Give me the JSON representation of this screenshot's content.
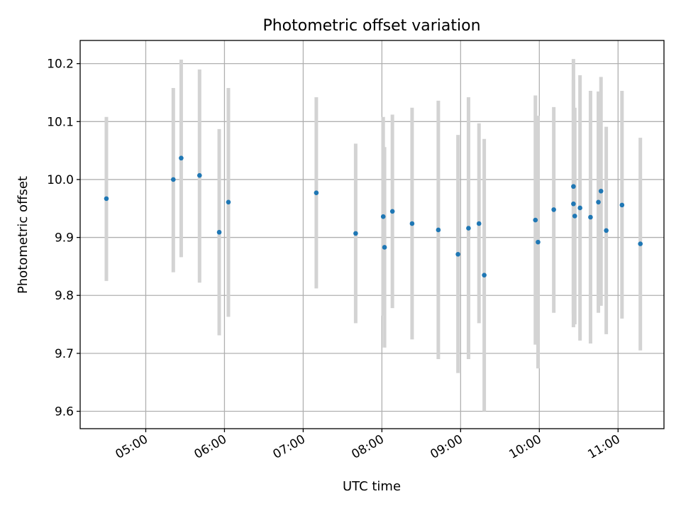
{
  "chart_data": {
    "type": "scatter",
    "title": "Photometric offset variation",
    "xlabel": "UTC time",
    "ylabel": "Photometric offset",
    "xlim": [
      "04:10",
      "11:35"
    ],
    "ylim": [
      9.57,
      10.24
    ],
    "grid": true,
    "x_ticks": [
      "05:00",
      "06:00",
      "07:00",
      "08:00",
      "09:00",
      "10:00",
      "11:00"
    ],
    "y_ticks": [
      "9.6",
      "9.7",
      "9.8",
      "9.9",
      "10.0",
      "10.1",
      "10.2"
    ],
    "colors": {
      "point": "#1f77b4",
      "errorbar": "#d3d3d3",
      "grid": "#b0b0b0"
    },
    "series": [
      {
        "points": [
          {
            "x": "04:30",
            "y": 9.967,
            "ylow": 9.825,
            "yhigh": 10.108
          },
          {
            "x": "05:21",
            "y": 10.0,
            "ylow": 9.84,
            "yhigh": 10.158
          },
          {
            "x": "05:27",
            "y": 10.037,
            "ylow": 9.866,
            "yhigh": 10.207
          },
          {
            "x": "05:41",
            "y": 10.007,
            "ylow": 9.822,
            "yhigh": 10.19
          },
          {
            "x": "05:56",
            "y": 9.909,
            "ylow": 9.731,
            "yhigh": 10.087
          },
          {
            "x": "06:03",
            "y": 9.961,
            "ylow": 9.763,
            "yhigh": 10.158
          },
          {
            "x": "07:10",
            "y": 9.977,
            "ylow": 9.812,
            "yhigh": 10.142
          },
          {
            "x": "07:40",
            "y": 9.907,
            "ylow": 9.752,
            "yhigh": 10.062
          },
          {
            "x": "08:01",
            "y": 9.936,
            "ylow": 9.765,
            "yhigh": 10.108
          },
          {
            "x": "08:02",
            "y": 9.883,
            "ylow": 9.71,
            "yhigh": 10.056
          },
          {
            "x": "08:08",
            "y": 9.945,
            "ylow": 9.778,
            "yhigh": 10.112
          },
          {
            "x": "08:23",
            "y": 9.924,
            "ylow": 9.724,
            "yhigh": 10.124
          },
          {
            "x": "08:43",
            "y": 9.913,
            "ylow": 9.69,
            "yhigh": 10.136
          },
          {
            "x": "08:58",
            "y": 9.871,
            "ylow": 9.666,
            "yhigh": 10.077
          },
          {
            "x": "09:06",
            "y": 9.916,
            "ylow": 9.69,
            "yhigh": 10.142
          },
          {
            "x": "09:14",
            "y": 9.924,
            "ylow": 9.752,
            "yhigh": 10.097
          },
          {
            "x": "09:18",
            "y": 9.835,
            "ylow": 9.6,
            "yhigh": 10.07
          },
          {
            "x": "09:57",
            "y": 9.93,
            "ylow": 9.715,
            "yhigh": 10.145
          },
          {
            "x": "09:59",
            "y": 9.892,
            "ylow": 9.674,
            "yhigh": 10.11
          },
          {
            "x": "10:11",
            "y": 9.948,
            "ylow": 9.77,
            "yhigh": 10.125
          },
          {
            "x": "10:26",
            "y": 9.958,
            "ylow": 9.745,
            "yhigh": 10.172
          },
          {
            "x": "10:26",
            "y": 9.988,
            "ylow": 9.768,
            "yhigh": 10.208
          },
          {
            "x": "10:27",
            "y": 9.937,
            "ylow": 9.75,
            "yhigh": 10.124
          },
          {
            "x": "10:31",
            "y": 9.951,
            "ylow": 9.722,
            "yhigh": 10.18
          },
          {
            "x": "10:39",
            "y": 9.935,
            "ylow": 9.717,
            "yhigh": 10.153
          },
          {
            "x": "10:45",
            "y": 9.961,
            "ylow": 9.77,
            "yhigh": 10.152
          },
          {
            "x": "10:47",
            "y": 9.98,
            "ylow": 9.782,
            "yhigh": 10.177
          },
          {
            "x": "10:51",
            "y": 9.912,
            "ylow": 9.733,
            "yhigh": 10.091
          },
          {
            "x": "11:03",
            "y": 9.956,
            "ylow": 9.76,
            "yhigh": 10.153
          },
          {
            "x": "11:17",
            "y": 9.889,
            "ylow": 9.705,
            "yhigh": 10.072
          }
        ]
      }
    ]
  }
}
